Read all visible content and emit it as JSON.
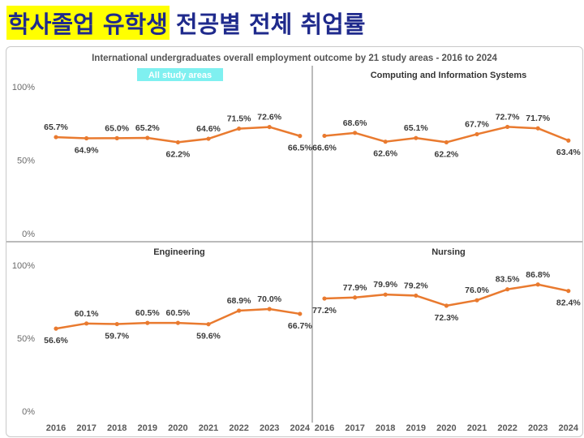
{
  "slide": {
    "title_highlight": "학사졸업 유학생",
    "title_rest": "전공별 전체 취업률"
  },
  "colors": {
    "line": "#e97a2f",
    "title": "#1f2a8c",
    "highlight": "#ffff00",
    "label_box": "#7ff0f0",
    "grid": "#bdbdbd"
  },
  "chart_data": {
    "type": "line",
    "title": "International undergraduates overall employment outcome by 21 study areas - 2016 to 2024",
    "x": [
      "2016",
      "2017",
      "2018",
      "2019",
      "2020",
      "2021",
      "2022",
      "2023",
      "2024"
    ],
    "y_ticks": [
      "0%",
      "50%",
      "100%"
    ],
    "ylim": [
      0,
      100
    ],
    "panels": [
      {
        "name": "All study areas",
        "values": [
          65.7,
          64.9,
          65.0,
          65.2,
          62.2,
          64.6,
          71.5,
          72.6,
          66.5
        ],
        "labels": [
          "65.7%",
          "64.9%",
          "65.0%",
          "65.2%",
          "62.2%",
          "64.6%",
          "71.5%",
          "72.6%",
          "66.5%"
        ]
      },
      {
        "name": "Computing and Information Systems",
        "values": [
          66.6,
          68.6,
          62.6,
          65.1,
          62.2,
          67.7,
          72.7,
          71.7,
          63.4
        ],
        "labels": [
          "66.6%",
          "68.6%",
          "62.6%",
          "65.1%",
          "62.2%",
          "67.7%",
          "72.7%",
          "71.7%",
          "63.4%"
        ]
      },
      {
        "name": "Engineering",
        "values": [
          56.6,
          60.1,
          59.7,
          60.5,
          60.5,
          59.6,
          68.9,
          70.0,
          66.7
        ],
        "labels": [
          "56.6%",
          "60.1%",
          "59.7%",
          "60.5%",
          "60.5%",
          "59.6%",
          "68.9%",
          "70.0%",
          "66.7%"
        ]
      },
      {
        "name": "Nursing",
        "values": [
          77.2,
          77.9,
          79.9,
          79.2,
          72.3,
          76.0,
          83.5,
          86.8,
          82.4
        ],
        "labels": [
          "77.2%",
          "77.9%",
          "79.9%",
          "79.2%",
          "72.3%",
          "76.0%",
          "83.5%",
          "86.8%",
          "82.4%"
        ]
      }
    ]
  }
}
